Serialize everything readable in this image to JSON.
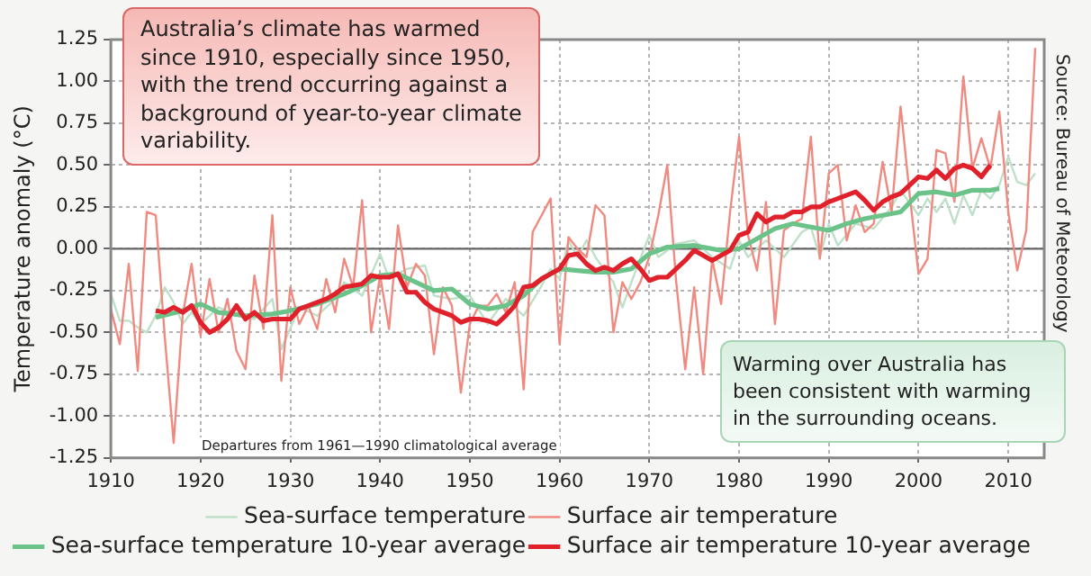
{
  "chart_data": {
    "type": "line",
    "ylabel": "Temperature anomaly (°C)",
    "annotations": [
      "Australia’s climate has warmed since 1910, especially since 1950, with the trend occurring against a background of year-to-year climate variability.",
      "Warming over Australia has been consistent with warming in the surrounding oceans.",
      "Departures from 1961—1990 climatological average",
      "Source: Bureau of Meteorology"
    ],
    "xlim": [
      1910,
      2014
    ],
    "xticks": [
      1910,
      1920,
      1930,
      1940,
      1950,
      1960,
      1970,
      1980,
      1990,
      2000,
      2010
    ],
    "ylim": [
      -1.25,
      1.25
    ],
    "yticks": [
      {
        "value": -1.25,
        "label": "-1.25"
      },
      {
        "value": -1,
        "label": "-1.00"
      },
      {
        "value": -0.75,
        "label": "-0.75"
      },
      {
        "value": -0.5,
        "label": "-0.50"
      },
      {
        "value": -0.25,
        "label": "-0.25"
      },
      {
        "value": 0,
        "label": "0.00"
      },
      {
        "value": 0.25,
        "label": "0.25"
      },
      {
        "value": 0.5,
        "label": "0.50"
      },
      {
        "value": 0.75,
        "label": "0.75"
      },
      {
        "value": 1,
        "label": "1.00"
      },
      {
        "value": 1.25,
        "label": "1.25"
      }
    ],
    "grid": true,
    "legend": "bottom",
    "marker": "none",
    "line_style": "solid",
    "ref_lines": [
      {
        "axis": "y",
        "value": 0,
        "color": "#666666"
      }
    ],
    "series": [
      {
        "name": "Sea-surface temperature",
        "color": "#bfe0c8",
        "x": [
          1910,
          1911,
          1912,
          1913,
          1914,
          1915,
          1916,
          1917,
          1918,
          1919,
          1920,
          1922,
          1924,
          1926,
          1928,
          1929,
          1931,
          1933,
          1935,
          1936,
          1938,
          1940,
          1941,
          1943,
          1945,
          1946,
          1948,
          1950,
          1952,
          1954,
          1956,
          1958,
          1959,
          1960,
          1961,
          1962,
          1963,
          1964,
          1966,
          1967,
          1968,
          1970,
          1971,
          1973,
          1975,
          1977,
          1979,
          1980,
          1981,
          1983,
          1985,
          1987,
          1988,
          1989,
          1990,
          1991,
          1993,
          1995,
          1997,
          1998,
          2000,
          2001,
          2002,
          2003,
          2004,
          2005,
          2006,
          2007,
          2008,
          2009,
          2010,
          2011,
          2012,
          2013
        ],
        "values": [
          -0.27,
          -0.43,
          -0.43,
          -0.47,
          -0.5,
          -0.4,
          -0.23,
          -0.32,
          -0.45,
          -0.38,
          -0.45,
          -0.35,
          -0.4,
          -0.42,
          -0.3,
          -0.6,
          -0.35,
          -0.4,
          -0.3,
          -0.2,
          -0.28,
          -0.03,
          -0.18,
          -0.12,
          -0.1,
          -0.28,
          -0.3,
          -0.28,
          -0.45,
          -0.3,
          -0.4,
          -0.22,
          -0.12,
          -0.18,
          0.05,
          -0.05,
          0.05,
          -0.05,
          -0.2,
          -0.35,
          -0.2,
          0.08,
          -0.05,
          0.03,
          0.05,
          -0.05,
          -0.12,
          0.05,
          -0.05,
          0.05,
          -0.05,
          0.1,
          0.13,
          -0.05,
          0.15,
          0.02,
          0.15,
          0.12,
          0.25,
          0.35,
          0.2,
          0.3,
          0.22,
          0.3,
          0.15,
          0.32,
          0.2,
          0.35,
          0.3,
          0.38,
          0.55,
          0.4,
          0.38,
          0.45
        ]
      },
      {
        "name": "Surface air temperature",
        "color": "#f08a80",
        "x": [
          1910,
          1911,
          1912,
          1913,
          1914,
          1915,
          1916,
          1917,
          1918,
          1919,
          1920,
          1921,
          1922,
          1923,
          1924,
          1925,
          1926,
          1927,
          1928,
          1929,
          1930,
          1931,
          1932,
          1933,
          1934,
          1935,
          1936,
          1937,
          1938,
          1939,
          1940,
          1941,
          1942,
          1943,
          1944,
          1945,
          1946,
          1947,
          1948,
          1949,
          1950,
          1951,
          1952,
          1953,
          1954,
          1955,
          1956,
          1957,
          1958,
          1959,
          1960,
          1961,
          1962,
          1963,
          1964,
          1965,
          1966,
          1967,
          1968,
          1969,
          1970,
          1971,
          1972,
          1973,
          1974,
          1975,
          1976,
          1977,
          1978,
          1979,
          1980,
          1981,
          1982,
          1983,
          1984,
          1985,
          1986,
          1987,
          1988,
          1989,
          1990,
          1991,
          1992,
          1993,
          1994,
          1995,
          1996,
          1997,
          1998,
          1999,
          2000,
          2001,
          2002,
          2003,
          2004,
          2005,
          2006,
          2007,
          2008,
          2009,
          2010,
          2011,
          2012,
          2013
        ],
        "values": [
          -0.36,
          -0.57,
          -0.09,
          -0.73,
          0.22,
          0.2,
          -0.52,
          -1.16,
          -0.4,
          -0.09,
          -0.52,
          -0.18,
          -0.5,
          -0.3,
          -0.61,
          -0.72,
          -0.16,
          -0.48,
          0.2,
          -0.79,
          -0.23,
          -0.45,
          -0.34,
          -0.48,
          -0.18,
          -0.38,
          -0.06,
          -0.23,
          0.29,
          -0.5,
          -0.16,
          -0.48,
          0.14,
          -0.23,
          -0.09,
          -0.16,
          -0.63,
          -0.23,
          -0.34,
          -0.86,
          -0.45,
          -0.34,
          -0.34,
          -0.27,
          -0.38,
          -0.2,
          -0.84,
          0.1,
          0.2,
          0.3,
          -0.57,
          0.07,
          0,
          -0.05,
          0.26,
          0.2,
          -0.5,
          -0.2,
          -0.3,
          -0.2,
          -0.05,
          0.2,
          0.5,
          -0.2,
          -0.72,
          -0.23,
          -0.75,
          -0.06,
          -0.33,
          0.22,
          0.67,
          0.08,
          -0.13,
          0.28,
          -0.45,
          0.11,
          0.15,
          0.18,
          0.67,
          -0.06,
          0.45,
          0.5,
          0.05,
          0.26,
          0.1,
          0.15,
          0.52,
          0.22,
          0.85,
          0.33,
          -0.15,
          -0.06,
          0.59,
          0.57,
          0.28,
          1.03,
          0.48,
          0.66,
          0.48,
          0.82,
          0.22,
          -0.13,
          0.11,
          1.2
        ]
      },
      {
        "name": "Sea-surface temperature 10-year average",
        "color": "#6cc38a",
        "x": [
          1915,
          1918,
          1920,
          1922,
          1925,
          1928,
          1930,
          1933,
          1936,
          1938,
          1940,
          1942,
          1944,
          1946,
          1948,
          1950,
          1952,
          1954,
          1956,
          1958,
          1960,
          1962,
          1964,
          1966,
          1968,
          1970,
          1972,
          1975,
          1978,
          1980,
          1982,
          1984,
          1986,
          1988,
          1990,
          1992,
          1994,
          1996,
          1998,
          2000,
          2002,
          2004,
          2006,
          2008,
          2009
        ],
        "values": [
          -0.41,
          -0.37,
          -0.33,
          -0.38,
          -0.4,
          -0.39,
          -0.37,
          -0.33,
          -0.27,
          -0.22,
          -0.16,
          -0.15,
          -0.2,
          -0.25,
          -0.24,
          -0.33,
          -0.36,
          -0.34,
          -0.28,
          -0.18,
          -0.12,
          -0.13,
          -0.14,
          -0.14,
          -0.12,
          -0.03,
          0.01,
          0.02,
          -0.01,
          0,
          0.06,
          0.12,
          0.15,
          0.13,
          0.11,
          0.15,
          0.18,
          0.2,
          0.22,
          0.33,
          0.34,
          0.32,
          0.35,
          0.35,
          0.36
        ]
      },
      {
        "name": "Surface air temperature 10-year average",
        "color": "#e0202a",
        "x": [
          1915,
          1916,
          1917,
          1918,
          1919,
          1920,
          1921,
          1922,
          1923,
          1924,
          1925,
          1926,
          1927,
          1928,
          1929,
          1930,
          1931,
          1932,
          1933,
          1934,
          1935,
          1936,
          1937,
          1938,
          1939,
          1940,
          1941,
          1942,
          1943,
          1944,
          1945,
          1946,
          1947,
          1948,
          1949,
          1950,
          1951,
          1952,
          1953,
          1954,
          1955,
          1956,
          1957,
          1958,
          1959,
          1960,
          1961,
          1962,
          1963,
          1964,
          1965,
          1966,
          1967,
          1968,
          1969,
          1970,
          1971,
          1972,
          1973,
          1974,
          1975,
          1976,
          1977,
          1978,
          1979,
          1980,
          1981,
          1982,
          1983,
          1984,
          1985,
          1986,
          1987,
          1988,
          1989,
          1990,
          1991,
          1992,
          1993,
          1994,
          1995,
          1996,
          1997,
          1998,
          1999,
          2000,
          2001,
          2002,
          2003,
          2004,
          2005,
          2006,
          2007,
          2008
        ],
        "values": [
          -0.37,
          -0.38,
          -0.35,
          -0.38,
          -0.34,
          -0.44,
          -0.5,
          -0.47,
          -0.42,
          -0.34,
          -0.42,
          -0.38,
          -0.43,
          -0.42,
          -0.42,
          -0.42,
          -0.36,
          -0.34,
          -0.32,
          -0.3,
          -0.27,
          -0.23,
          -0.22,
          -0.21,
          -0.16,
          -0.17,
          -0.17,
          -0.15,
          -0.26,
          -0.26,
          -0.32,
          -0.36,
          -0.38,
          -0.4,
          -0.44,
          -0.42,
          -0.42,
          -0.43,
          -0.45,
          -0.4,
          -0.34,
          -0.23,
          -0.22,
          -0.18,
          -0.15,
          -0.12,
          -0.04,
          -0.03,
          -0.09,
          -0.13,
          -0.11,
          -0.13,
          -0.09,
          -0.06,
          -0.12,
          -0.19,
          -0.17,
          -0.17,
          -0.12,
          -0.07,
          -0.01,
          -0.04,
          -0.07,
          -0.04,
          -0.01,
          0.08,
          0.1,
          0.21,
          0.16,
          0.19,
          0.19,
          0.22,
          0.22,
          0.25,
          0.25,
          0.28,
          0.3,
          0.32,
          0.34,
          0.29,
          0.23,
          0.28,
          0.31,
          0.33,
          0.38,
          0.43,
          0.42,
          0.47,
          0.42,
          0.48,
          0.5,
          0.48,
          0.43,
          0.5
        ]
      }
    ]
  }
}
